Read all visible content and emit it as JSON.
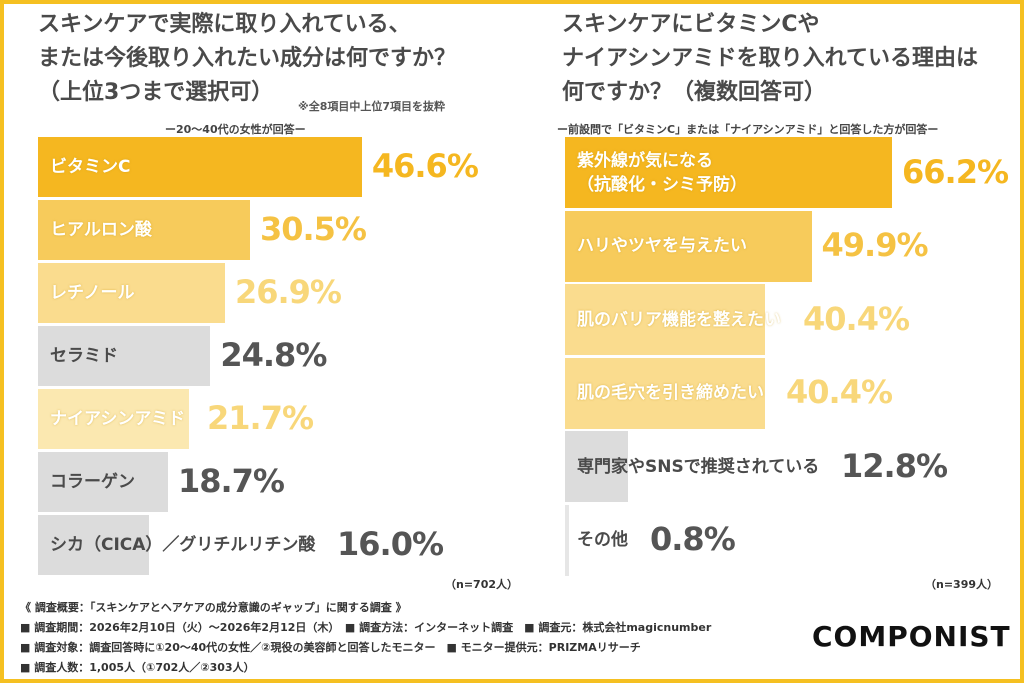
{
  "left": {
    "title": "スキンケアで実際に取り入れている、\nまたは今後取り入れたい成分は何ですか？\n（上位3つまで選択可）",
    "note": "※全8項目中上位7項目を抜粋",
    "subtitle": "ー20〜40代の女性が回答ー",
    "n_label": "（n=702人）"
  },
  "right": {
    "title": "スキンケアにビタミンCや\nナイアシンアミドを取り入れている理由は\n何ですか？（複数回答可）",
    "subtitle": "ー前設問で「ビタミンC」または「ナイアシンアミド」と回答した方が回答ー",
    "n_label": "（n=399人）"
  },
  "chart_data": [
    {
      "type": "bar",
      "orientation": "horizontal",
      "unit": "%",
      "categories": [
        "ビタミンC",
        "ヒアルロン酸",
        "レチノール",
        "セラミド",
        "ナイアシンアミド",
        "コラーゲン",
        "シカ（CICA）／グリチルリチン酸"
      ],
      "values": [
        46.6,
        30.5,
        26.9,
        24.8,
        21.7,
        18.7,
        16.0
      ],
      "labels": [
        "46.6%",
        "30.5%",
        "26.9%",
        "24.8%",
        "21.7%",
        "18.7%",
        "16.0%"
      ],
      "colors": [
        "#F5B720",
        "#F7CB5B",
        "#FADC8E",
        "#DCDCDC",
        "#FBE8B0",
        "#DCDCDC",
        "#DCDCDC"
      ]
    },
    {
      "type": "bar",
      "orientation": "horizontal",
      "unit": "%",
      "categories": [
        "紫外線が気になる\n（抗酸化・シミ予防）",
        "ハリやツヤを与えたい",
        "肌のバリア機能を整えたい",
        "肌の毛穴を引き締めたい",
        "専門家やSNSで推奨されている",
        "その他"
      ],
      "values": [
        66.2,
        49.9,
        40.4,
        40.4,
        12.8,
        0.8
      ],
      "labels": [
        "66.2%",
        "49.9%",
        "40.4%",
        "40.4%",
        "12.8%",
        "0.8%"
      ],
      "colors": [
        "#F5B720",
        "#F7CB5B",
        "#FADC8E",
        "#FADC8E",
        "#DCDCDC",
        "#E6E6E6"
      ]
    }
  ],
  "footer": {
    "lines": [
      "《 調査概要：「スキンケアとヘアケアの成分意識のギャップ」に関する調査 》",
      "■ 調査期間：2026年2月10日（火）〜2026年2月12日（木）　■ 調査方法：インターネット調査　■ 調査元：株式会社magicnumber",
      "■ 調査対象：調査回答時に①20〜40代の女性／②現役の美容師と回答したモニター　■ モニター提供元：PRIZMAリサーチ",
      "■ 調査人数：1,005人（①702人／②303人）"
    ],
    "logo": "COMPONIST"
  }
}
